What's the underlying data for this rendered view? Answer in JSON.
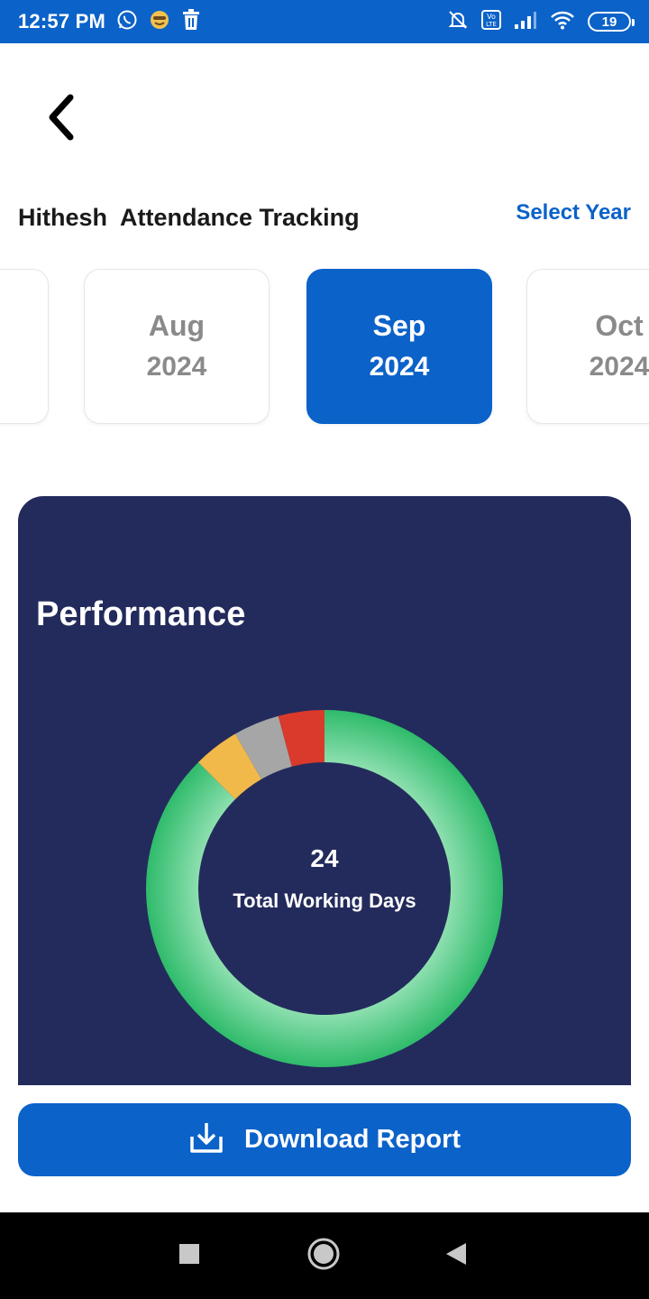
{
  "status_bar": {
    "time": "12:57 PM",
    "battery": "19",
    "icons": [
      "whatsapp-icon",
      "emoji-icon",
      "trash-icon",
      "mute-icon",
      "volte-icon",
      "signal-icon",
      "wifi-icon",
      "battery-icon"
    ]
  },
  "header": {
    "back_icon": "chevron-left-icon",
    "title": "Hithesh  Attendance Tracking",
    "select_year_label": "Select Year"
  },
  "months": [
    {
      "name": "",
      "year": "",
      "active": false
    },
    {
      "name": "Aug",
      "year": "2024",
      "active": false
    },
    {
      "name": "Sep",
      "year": "2024",
      "active": true
    },
    {
      "name": "Oct",
      "year": "2024",
      "active": false
    }
  ],
  "performance": {
    "title": "Performance",
    "total_value": "24",
    "total_label": "Total Working Days"
  },
  "chart_data": {
    "type": "pie",
    "categories": [
      "green",
      "yellow",
      "gray",
      "red"
    ],
    "values": [
      21,
      1,
      1,
      1
    ],
    "colors": [
      "#3cc274",
      "#f0b94a",
      "#a6a6a6",
      "#d93a2b"
    ],
    "total": 24
  },
  "download": {
    "label": "Download Report",
    "icon": "download-icon"
  },
  "nav": {
    "icons": [
      "recent-apps-icon",
      "home-icon",
      "back-icon"
    ]
  },
  "colors": {
    "primary": "#0b62c9",
    "card_bg": "#232b5c"
  }
}
